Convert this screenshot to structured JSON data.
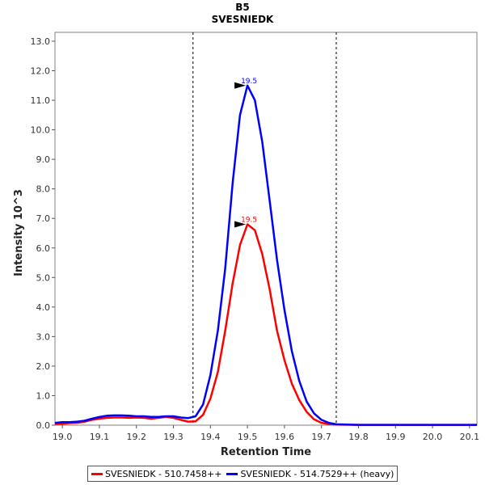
{
  "chart_data": {
    "type": "line",
    "title": "B5",
    "subtitle": "SVESNIEDK",
    "xlabel": "Retention Time",
    "ylabel": "Intensity 10^3",
    "xlim": [
      18.98,
      20.12
    ],
    "ylim": [
      0.0,
      13.3
    ],
    "x_ticks": [
      "19.0",
      "19.1",
      "19.2",
      "19.3",
      "19.4",
      "19.5",
      "19.6",
      "19.7",
      "19.8",
      "19.9",
      "20.0",
      "20.1"
    ],
    "y_ticks": [
      "0.0",
      "1.0",
      "2.0",
      "3.0",
      "4.0",
      "5.0",
      "6.0",
      "7.0",
      "8.0",
      "9.0",
      "10.0",
      "11.0",
      "12.0",
      "13.0"
    ],
    "boundaries": [
      19.353,
      19.74
    ],
    "grid": false,
    "legend_position": "bottom",
    "series": [
      {
        "name": "SVESNIEDK - 510.7458++",
        "color": "#ff0000",
        "peak_label": "19.5",
        "peak": {
          "x": 19.5,
          "y": 6.8
        },
        "points": [
          [
            18.98,
            0.05
          ],
          [
            19.0,
            0.05
          ],
          [
            19.02,
            0.07
          ],
          [
            19.04,
            0.08
          ],
          [
            19.06,
            0.12
          ],
          [
            19.08,
            0.18
          ],
          [
            19.1,
            0.22
          ],
          [
            19.12,
            0.25
          ],
          [
            19.14,
            0.26
          ],
          [
            19.16,
            0.26
          ],
          [
            19.18,
            0.25
          ],
          [
            19.2,
            0.26
          ],
          [
            19.22,
            0.25
          ],
          [
            19.24,
            0.22
          ],
          [
            19.26,
            0.25
          ],
          [
            19.28,
            0.28
          ],
          [
            19.3,
            0.25
          ],
          [
            19.32,
            0.18
          ],
          [
            19.34,
            0.12
          ],
          [
            19.36,
            0.13
          ],
          [
            19.38,
            0.35
          ],
          [
            19.4,
            0.9
          ],
          [
            19.42,
            1.8
          ],
          [
            19.44,
            3.2
          ],
          [
            19.46,
            4.8
          ],
          [
            19.48,
            6.1
          ],
          [
            19.5,
            6.8
          ],
          [
            19.52,
            6.6
          ],
          [
            19.54,
            5.8
          ],
          [
            19.56,
            4.6
          ],
          [
            19.58,
            3.2
          ],
          [
            19.6,
            2.2
          ],
          [
            19.62,
            1.4
          ],
          [
            19.64,
            0.85
          ],
          [
            19.66,
            0.45
          ],
          [
            19.68,
            0.2
          ],
          [
            19.7,
            0.08
          ],
          [
            19.72,
            0.04
          ],
          [
            19.74,
            0.02
          ],
          [
            19.8,
            0.01
          ],
          [
            19.9,
            0.01
          ],
          [
            20.0,
            0.01
          ],
          [
            20.12,
            0.01
          ]
        ]
      },
      {
        "name": "SVESNIEDK - 514.7529++ (heavy)",
        "color": "#0000ff",
        "peak_label": "19.5",
        "peak": {
          "x": 19.5,
          "y": 11.5
        },
        "points": [
          [
            18.98,
            0.08
          ],
          [
            19.0,
            0.1
          ],
          [
            19.02,
            0.1
          ],
          [
            19.04,
            0.12
          ],
          [
            19.06,
            0.15
          ],
          [
            19.08,
            0.22
          ],
          [
            19.1,
            0.28
          ],
          [
            19.12,
            0.32
          ],
          [
            19.14,
            0.33
          ],
          [
            19.16,
            0.33
          ],
          [
            19.18,
            0.32
          ],
          [
            19.2,
            0.3
          ],
          [
            19.22,
            0.3
          ],
          [
            19.24,
            0.28
          ],
          [
            19.26,
            0.28
          ],
          [
            19.28,
            0.3
          ],
          [
            19.3,
            0.3
          ],
          [
            19.32,
            0.26
          ],
          [
            19.34,
            0.24
          ],
          [
            19.36,
            0.3
          ],
          [
            19.38,
            0.7
          ],
          [
            19.4,
            1.7
          ],
          [
            19.42,
            3.2
          ],
          [
            19.44,
            5.3
          ],
          [
            19.46,
            8.2
          ],
          [
            19.48,
            10.5
          ],
          [
            19.5,
            11.5
          ],
          [
            19.52,
            11.0
          ],
          [
            19.54,
            9.6
          ],
          [
            19.56,
            7.6
          ],
          [
            19.58,
            5.6
          ],
          [
            19.6,
            3.9
          ],
          [
            19.62,
            2.5
          ],
          [
            19.64,
            1.5
          ],
          [
            19.66,
            0.8
          ],
          [
            19.68,
            0.4
          ],
          [
            19.7,
            0.18
          ],
          [
            19.72,
            0.08
          ],
          [
            19.74,
            0.03
          ],
          [
            19.8,
            0.01
          ],
          [
            19.9,
            0.01
          ],
          [
            20.0,
            0.01
          ],
          [
            20.12,
            0.01
          ]
        ]
      }
    ]
  }
}
